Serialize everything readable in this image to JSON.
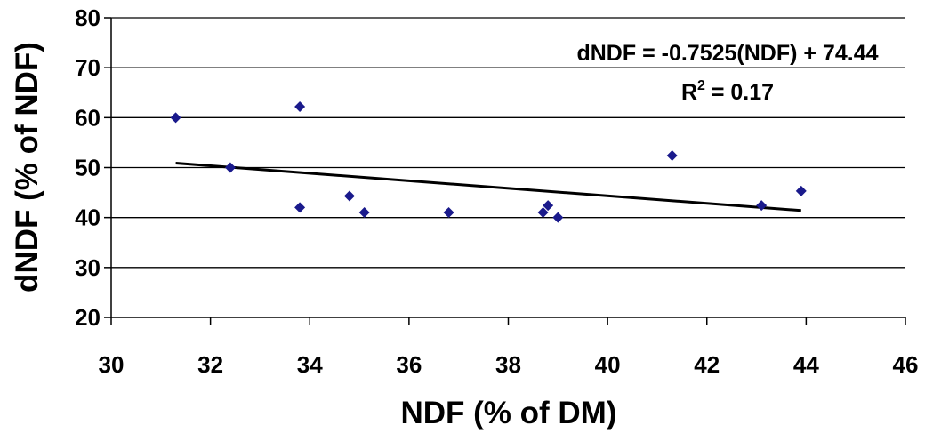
{
  "chart_data": {
    "type": "scatter",
    "xlabel": "NDF (% of DM)",
    "ylabel": "dNDF (% of NDF)",
    "xlim": [
      30,
      46
    ],
    "ylim": [
      20,
      80
    ],
    "x_ticks": [
      "30",
      "32",
      "34",
      "36",
      "38",
      "40",
      "42",
      "44",
      "46"
    ],
    "y_ticks": [
      "20",
      "30",
      "40",
      "50",
      "60",
      "70",
      "80"
    ],
    "grid": "horizontal",
    "legend": "none",
    "series": [
      {
        "marker": "diamond",
        "color": "#1a1a8c",
        "points": [
          {
            "x": 31.3,
            "y": 60.0
          },
          {
            "x": 32.4,
            "y": 50.0
          },
          {
            "x": 33.8,
            "y": 62.2
          },
          {
            "x": 33.8,
            "y": 42.0
          },
          {
            "x": 34.8,
            "y": 44.3
          },
          {
            "x": 35.1,
            "y": 41.0
          },
          {
            "x": 36.8,
            "y": 41.0
          },
          {
            "x": 38.7,
            "y": 41.0
          },
          {
            "x": 38.8,
            "y": 42.4
          },
          {
            "x": 39.0,
            "y": 40.0
          },
          {
            "x": 41.3,
            "y": 52.4
          },
          {
            "x": 43.1,
            "y": 42.4
          },
          {
            "x": 43.9,
            "y": 45.3
          }
        ]
      }
    ],
    "trendline": {
      "slope": -0.7525,
      "intercept": 74.44,
      "x_start": 31.3,
      "x_end": 43.9,
      "color": "#000000"
    },
    "annotations": {
      "equation": "dNDF = -0.7525(NDF) + 74.44",
      "r2_prefix": "R",
      "r2_sup": "2",
      "r2_value": " = 0.17"
    }
  }
}
